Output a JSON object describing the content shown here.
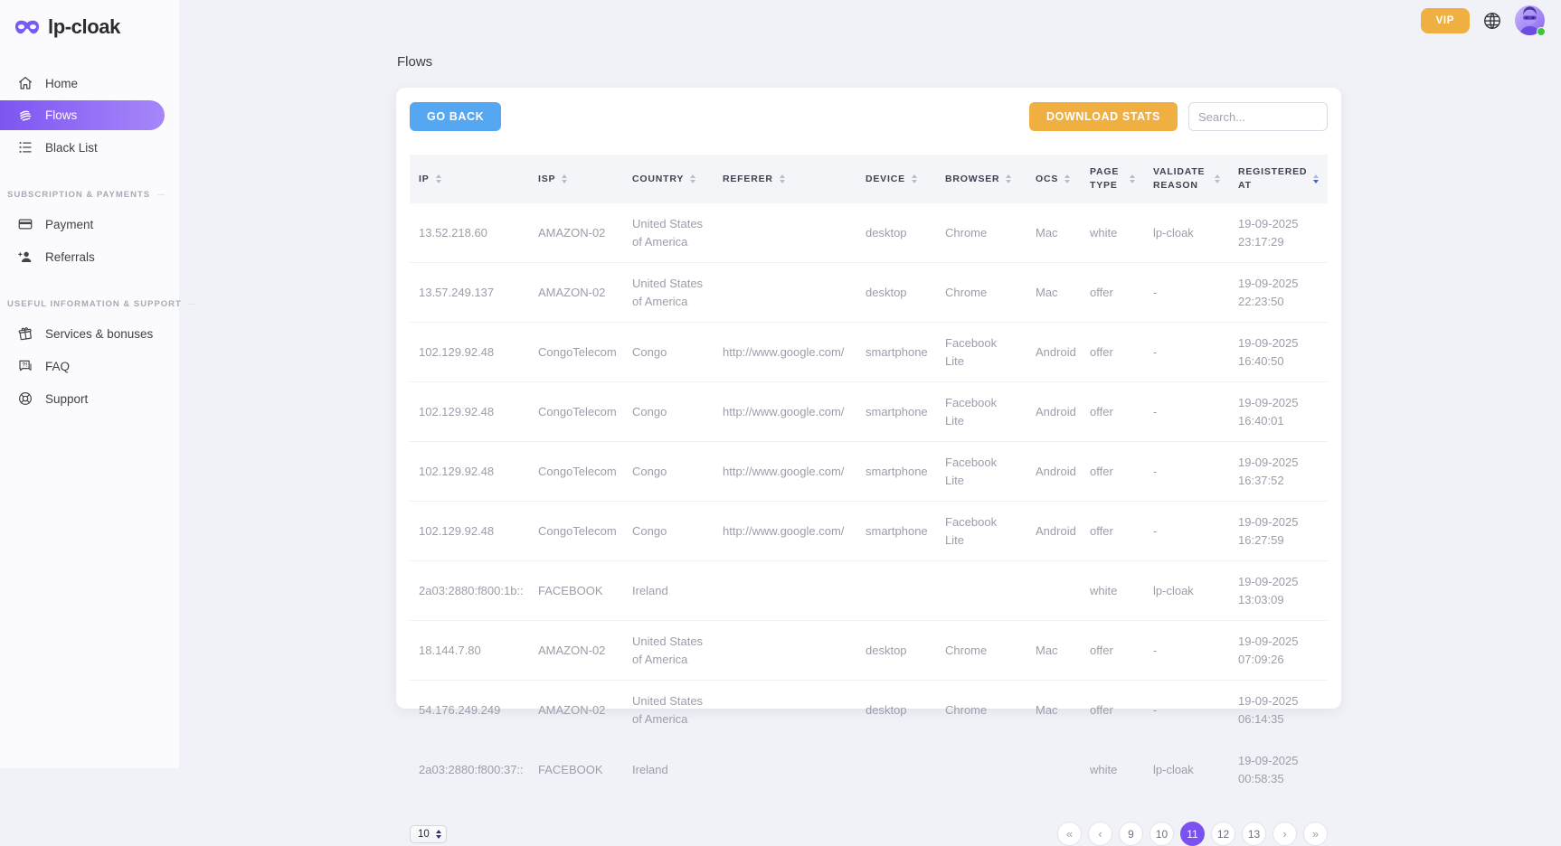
{
  "theme": {
    "accent_purple": "#7b52f0",
    "gradient_start": "#7d55f1",
    "gradient_end": "#a687fa",
    "blue": "#55a7f2",
    "orange": "#f0b041",
    "page_bg": "#f1f2f7",
    "card_bg": "#ffffff",
    "online_green": "#3ec53e"
  },
  "brand": {
    "name": "lp-cloak",
    "logo_icon": "mask-icon"
  },
  "topbar": {
    "vip_label": "VIP",
    "icons": [
      "globe-icon",
      "avatar"
    ]
  },
  "sidebar": {
    "items": [
      {
        "label": "Home",
        "icon": "home-icon",
        "active": false
      },
      {
        "label": "Flows",
        "icon": "flows-icon",
        "active": true
      },
      {
        "label": "Black List",
        "icon": "black-list-icon",
        "active": false
      }
    ],
    "sections": [
      {
        "label": "SUBSCRIPTION & PAYMENTS",
        "items": [
          {
            "label": "Payment",
            "icon": "payment-icon"
          },
          {
            "label": "Referrals",
            "icon": "referrals-icon"
          }
        ]
      },
      {
        "label": "USEFUL INFORMATION & SUPPORT",
        "items": [
          {
            "label": "Services & bonuses",
            "icon": "gift-icon"
          },
          {
            "label": "FAQ",
            "icon": "faq-icon"
          },
          {
            "label": "Support",
            "icon": "lifebuoy-icon"
          }
        ]
      }
    ]
  },
  "page": {
    "title": "Flows"
  },
  "toolbar": {
    "go_back": "GO BACK",
    "download_stats": "DOWNLOAD STATS",
    "search_placeholder": "Search..."
  },
  "table": {
    "sort_active": "registered_at",
    "sort_direction": "desc",
    "columns": [
      {
        "key": "ip",
        "label": "IP"
      },
      {
        "key": "isp",
        "label": "ISP"
      },
      {
        "key": "country",
        "label": "COUNTRY"
      },
      {
        "key": "referer",
        "label": "REFERER"
      },
      {
        "key": "device",
        "label": "DEVICE"
      },
      {
        "key": "browser",
        "label": "BROWSER"
      },
      {
        "key": "ocs",
        "label": "OCS"
      },
      {
        "key": "page_type",
        "label": "PAGE TYPE"
      },
      {
        "key": "validate_reason",
        "label": "VALIDATE REASON"
      },
      {
        "key": "registered_at",
        "label": "REGISTERED AT"
      }
    ],
    "rows": [
      {
        "ip": "13.52.218.60",
        "isp": "AMAZON-02",
        "country": "United States of America",
        "referer": "",
        "device": "desktop",
        "browser": "Chrome",
        "ocs": "Mac",
        "page_type": "white",
        "validate_reason": "lp-cloak",
        "registered_at": "19-09-2025 23:17:29"
      },
      {
        "ip": "13.57.249.137",
        "isp": "AMAZON-02",
        "country": "United States of America",
        "referer": "",
        "device": "desktop",
        "browser": "Chrome",
        "ocs": "Mac",
        "page_type": "offer",
        "validate_reason": "-",
        "registered_at": "19-09-2025 22:23:50"
      },
      {
        "ip": "102.129.92.48",
        "isp": "CongoTelecom",
        "country": "Congo",
        "referer": "http://www.google.com/",
        "device": "smartphone",
        "browser": "Facebook Lite",
        "ocs": "Android",
        "page_type": "offer",
        "validate_reason": "-",
        "registered_at": "19-09-2025 16:40:50"
      },
      {
        "ip": "102.129.92.48",
        "isp": "CongoTelecom",
        "country": "Congo",
        "referer": "http://www.google.com/",
        "device": "smartphone",
        "browser": "Facebook Lite",
        "ocs": "Android",
        "page_type": "offer",
        "validate_reason": "-",
        "registered_at": "19-09-2025 16:40:01"
      },
      {
        "ip": "102.129.92.48",
        "isp": "CongoTelecom",
        "country": "Congo",
        "referer": "http://www.google.com/",
        "device": "smartphone",
        "browser": "Facebook Lite",
        "ocs": "Android",
        "page_type": "offer",
        "validate_reason": "-",
        "registered_at": "19-09-2025 16:37:52"
      },
      {
        "ip": "102.129.92.48",
        "isp": "CongoTelecom",
        "country": "Congo",
        "referer": "http://www.google.com/",
        "device": "smartphone",
        "browser": "Facebook Lite",
        "ocs": "Android",
        "page_type": "offer",
        "validate_reason": "-",
        "registered_at": "19-09-2025 16:27:59"
      },
      {
        "ip": "2a03:2880:f800:1b::",
        "isp": "FACEBOOK",
        "country": "Ireland",
        "referer": "",
        "device": "",
        "browser": "",
        "ocs": "",
        "page_type": "white",
        "validate_reason": "lp-cloak",
        "registered_at": "19-09-2025 13:03:09"
      },
      {
        "ip": "18.144.7.80",
        "isp": "AMAZON-02",
        "country": "United States of America",
        "referer": "",
        "device": "desktop",
        "browser": "Chrome",
        "ocs": "Mac",
        "page_type": "offer",
        "validate_reason": "-",
        "registered_at": "19-09-2025 07:09:26"
      },
      {
        "ip": "54.176.249.249",
        "isp": "AMAZON-02",
        "country": "United States of America",
        "referer": "",
        "device": "desktop",
        "browser": "Chrome",
        "ocs": "Mac",
        "page_type": "offer",
        "validate_reason": "-",
        "registered_at": "19-09-2025 06:14:35"
      },
      {
        "ip": "2a03:2880:f800:37::",
        "isp": "FACEBOOK",
        "country": "Ireland",
        "referer": "",
        "device": "",
        "browser": "",
        "ocs": "",
        "page_type": "white",
        "validate_reason": "lp-cloak",
        "registered_at": "19-09-2025 00:58:35"
      }
    ]
  },
  "pagination": {
    "page_size": "10",
    "first_label": "«",
    "prev_label": "‹",
    "next_label": "›",
    "last_label": "»",
    "pages": [
      "9",
      "10",
      "11",
      "12",
      "13"
    ],
    "active_page": "11"
  }
}
